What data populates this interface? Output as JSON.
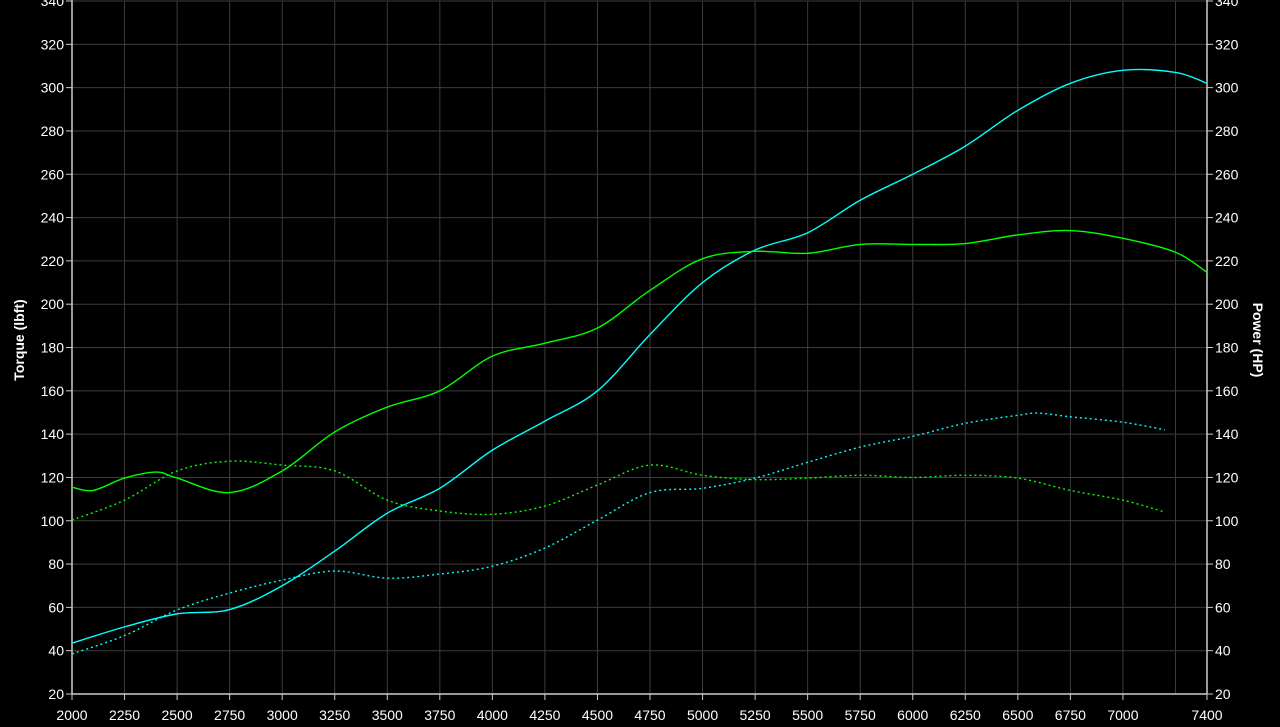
{
  "chart_data": {
    "type": "line",
    "title": "",
    "xlabel": "",
    "ylabel_left": "Torque (lbft)",
    "ylabel_right": "Power (HP)",
    "xlim": [
      2000,
      7400
    ],
    "ylim": [
      20,
      340
    ],
    "x_ticks": [
      2000,
      2250,
      2500,
      2750,
      3000,
      3250,
      3500,
      3750,
      4000,
      4250,
      4500,
      4750,
      5000,
      5250,
      5500,
      5750,
      6000,
      6250,
      6500,
      6750,
      7000,
      7400
    ],
    "x_grid": [
      2000,
      2250,
      2500,
      2750,
      3000,
      3250,
      3500,
      3750,
      4000,
      4250,
      4500,
      4750,
      5000,
      5250,
      5500,
      5750,
      6000,
      6250,
      6500,
      6750,
      7000,
      7250,
      7400
    ],
    "y_ticks": [
      20,
      40,
      60,
      80,
      100,
      120,
      140,
      160,
      180,
      200,
      220,
      240,
      260,
      280,
      300,
      320,
      340
    ],
    "grid": true,
    "background": "#000000",
    "series": [
      {
        "color": "#00ffff",
        "style": "solid",
        "x": [
          2000,
          2250,
          2500,
          2750,
          3000,
          3250,
          3500,
          3750,
          4000,
          4250,
          4500,
          4750,
          5000,
          5250,
          5500,
          5750,
          6000,
          6250,
          6500,
          6750,
          7000,
          7250,
          7400
        ],
        "y": [
          43.5,
          51,
          57,
          59,
          70,
          86,
          103.5,
          115,
          132.6,
          146,
          160,
          186,
          210,
          225,
          233,
          248,
          260,
          273,
          289.5,
          302,
          308,
          307,
          302
        ]
      },
      {
        "color": "#00ff00",
        "style": "solid",
        "x": [
          2000,
          2100,
          2250,
          2400,
          2500,
          2750,
          3000,
          3250,
          3500,
          3750,
          4000,
          4250,
          4500,
          4750,
          5000,
          5250,
          5500,
          5750,
          6000,
          6250,
          6500,
          6750,
          7000,
          7250,
          7400
        ],
        "y": [
          115.5,
          114,
          119.7,
          122.5,
          119.7,
          113,
          123,
          141,
          152.5,
          160,
          176,
          182,
          189,
          206.4,
          221,
          224.4,
          223.5,
          227.6,
          227.6,
          228,
          232,
          234,
          230.4,
          224,
          214.7
        ]
      },
      {
        "color": "#00ff00",
        "style": "dotted",
        "x": [
          2000,
          2250,
          2500,
          2750,
          3000,
          3250,
          3500,
          3750,
          4000,
          4250,
          4500,
          4750,
          5000,
          5250,
          5500,
          5750,
          6000,
          6250,
          6500,
          6750,
          7000,
          7200
        ],
        "y": [
          100.3,
          109.5,
          123,
          127.5,
          125.7,
          123,
          109.5,
          104.5,
          103,
          106.8,
          116.5,
          125.7,
          121,
          119,
          119.7,
          121,
          120,
          121,
          119.7,
          114,
          109.5,
          104
        ]
      },
      {
        "color": "#00ffff",
        "style": "dotted",
        "x": [
          2000,
          2250,
          2500,
          2750,
          3000,
          3250,
          3500,
          3750,
          4000,
          4250,
          4500,
          4750,
          5000,
          5250,
          5500,
          5750,
          6000,
          6250,
          6500,
          6600,
          6750,
          7000,
          7200
        ],
        "y": [
          38.5,
          47,
          58.8,
          66.6,
          72.6,
          76.8,
          73.5,
          75.4,
          79,
          87.4,
          100.3,
          113,
          115,
          119.7,
          127,
          134,
          139,
          145,
          148.7,
          149.7,
          148,
          145.5,
          142
        ]
      }
    ]
  }
}
